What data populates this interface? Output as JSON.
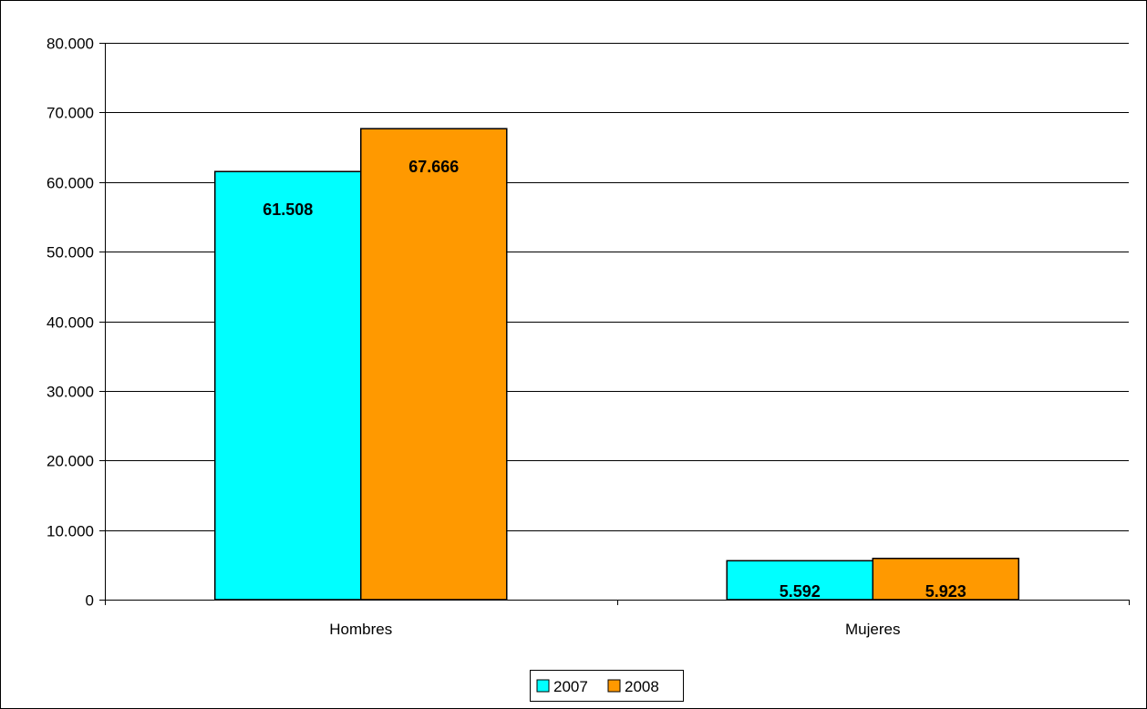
{
  "chart_data": {
    "type": "bar",
    "categories": [
      "Hombres",
      "Mujeres"
    ],
    "series": [
      {
        "name": "2007",
        "values": [
          61508,
          5592
        ],
        "labels": [
          "61.508",
          "5.592"
        ],
        "color": "#00FFFF"
      },
      {
        "name": "2008",
        "values": [
          67666,
          5923
        ],
        "labels": [
          "67.666",
          "5.923"
        ],
        "color": "#FF9900"
      }
    ],
    "ylim": [
      0,
      80000
    ],
    "yticks": [
      0,
      10000,
      20000,
      30000,
      40000,
      50000,
      60000,
      70000,
      80000
    ],
    "ytick_labels": [
      "0",
      "10.000",
      "20.000",
      "30.000",
      "40.000",
      "50.000",
      "60.000",
      "70.000",
      "80.000"
    ],
    "grid": true,
    "legend_position": "bottom-center",
    "title": "",
    "xlabel": "",
    "ylabel": ""
  }
}
